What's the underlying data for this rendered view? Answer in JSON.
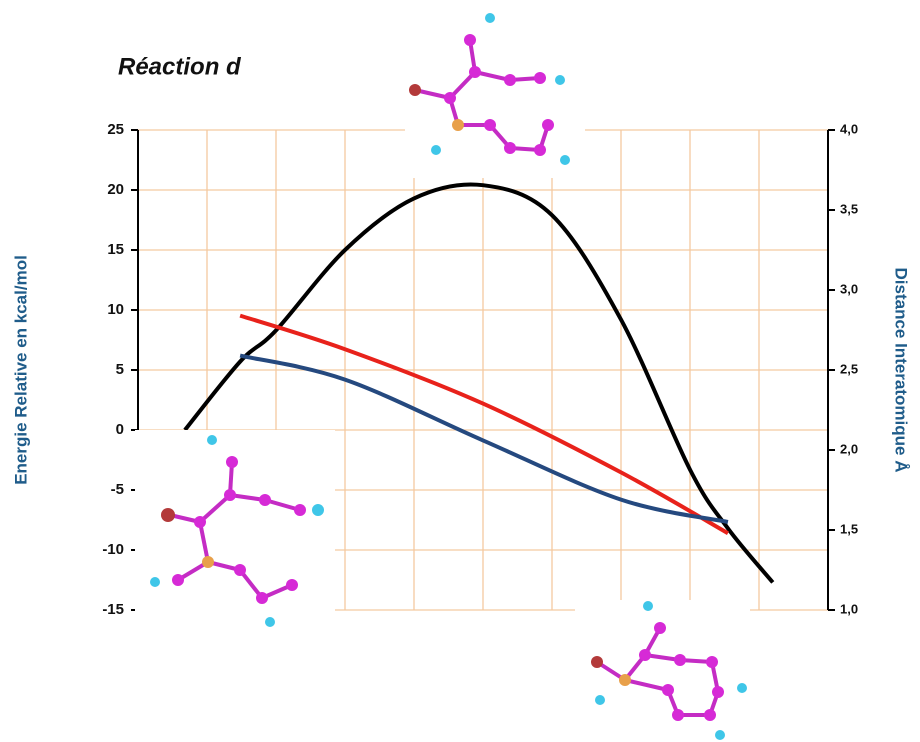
{
  "chart_data": {
    "type": "line",
    "title": "Réaction d",
    "ylabel": "Energie Relative en kcal/mol",
    "y2label": "Distance Interatomique Å",
    "xlim": [
      0,
      10
    ],
    "xticks": [
      0,
      1,
      2,
      3,
      4,
      5,
      6,
      7,
      8,
      9,
      10
    ],
    "ylim": [
      -15,
      25
    ],
    "yticks": [
      -15,
      -10,
      -5,
      0,
      5,
      10,
      15,
      20,
      25
    ],
    "y2lim": [
      1.0,
      4.0
    ],
    "y2ticks": [
      {
        "value": 1.0,
        "label": "1,0"
      },
      {
        "value": 1.5,
        "label": "1,5"
      },
      {
        "value": 2.0,
        "label": "2,0"
      },
      {
        "value": 2.5,
        "label": "2,5"
      },
      {
        "value": 3.0,
        "label": "3,0"
      },
      {
        "value": 3.5,
        "label": "3,5"
      },
      {
        "value": 4.0,
        "label": "4,0"
      }
    ],
    "grid": true,
    "series": [
      {
        "color": "#000000",
        "axis": "y",
        "x": [
          0.68,
          1.48,
          2,
          3,
          4,
          5,
          6,
          7,
          8,
          8.55,
          9.2
        ],
        "values": [
          0,
          5.7,
          8.3,
          15,
          19.3,
          20.4,
          17.9,
          9.2,
          -3.3,
          -8.2,
          -12.7
        ]
      },
      {
        "color": "#e8221b",
        "axis": "y2",
        "x": [
          1.48,
          3,
          5,
          7,
          8.55
        ],
        "values": [
          2.84,
          2.63,
          2.29,
          1.86,
          1.48
        ]
      },
      {
        "color": "#25497f",
        "axis": "y2",
        "x": [
          1.48,
          3,
          5,
          7,
          8.55
        ],
        "values": [
          2.59,
          2.44,
          2.06,
          1.69,
          1.55
        ]
      }
    ]
  }
}
